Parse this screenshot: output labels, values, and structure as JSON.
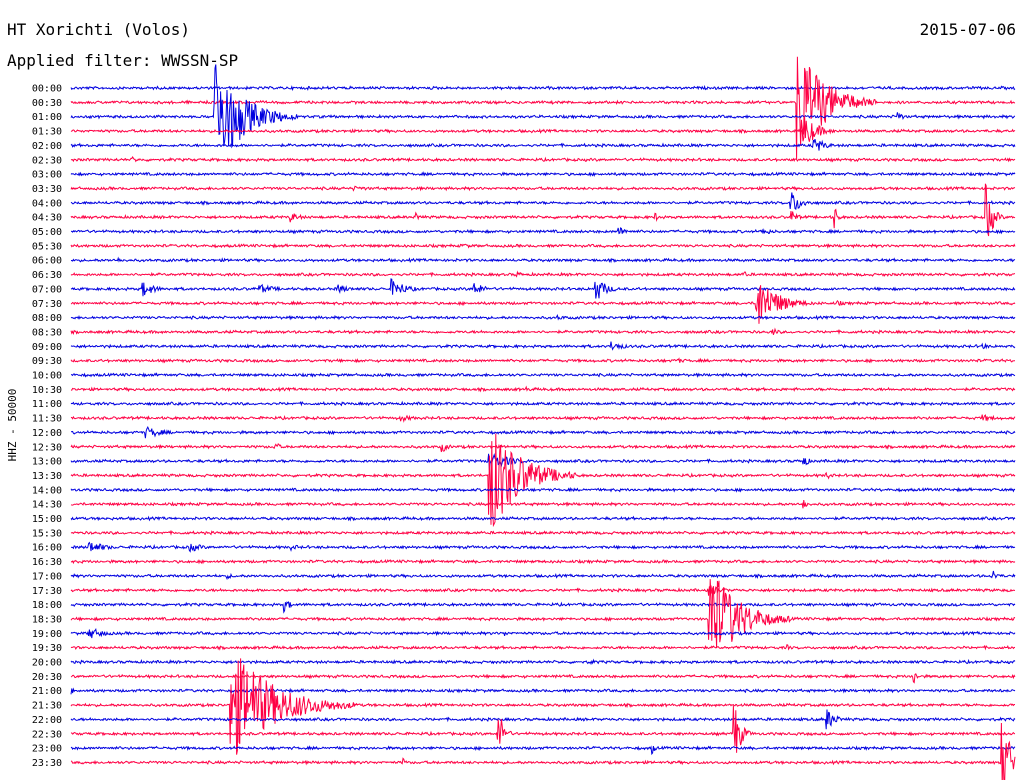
{
  "header": {
    "station": "HT Xorichti (Volos)",
    "date": "2015-07-06",
    "filter": "Applied filter: WWSSN-SP"
  },
  "colors": {
    "trace_a": "#0000e0",
    "trace_b": "#ff0044",
    "text": "#000000",
    "background": "#ffffff"
  },
  "chart_data": {
    "type": "line",
    "title": "HT Xorichti (Volos)",
    "subtitle": "Applied filter: WWSSN-SP",
    "ylabel": "HHZ - 50000",
    "xlabel": "",
    "x_range_minutes": [
      0,
      30
    ],
    "grid": false,
    "legend": "none",
    "traces": [
      {
        "label": "00:00",
        "color": "blue",
        "events": []
      },
      {
        "label": "00:30",
        "color": "red",
        "events": [
          {
            "t": 23.1,
            "amp": 1.0,
            "dur": 2.5
          }
        ]
      },
      {
        "label": "01:00",
        "color": "blue",
        "events": [
          {
            "t": 4.6,
            "amp": 0.95,
            "dur": 2.6
          },
          {
            "t": 26.3,
            "amp": 0.08,
            "dur": 0.5
          }
        ]
      },
      {
        "label": "01:30",
        "color": "red",
        "events": [
          {
            "t": 23.3,
            "amp": 0.3,
            "dur": 1.2
          }
        ]
      },
      {
        "label": "02:00",
        "color": "blue",
        "events": [
          {
            "t": 23.6,
            "amp": 0.15,
            "dur": 1.0
          }
        ]
      },
      {
        "label": "02:30",
        "color": "red",
        "events": [
          {
            "t": 2.0,
            "amp": 0.05,
            "dur": 0.4
          }
        ]
      },
      {
        "label": "03:00",
        "color": "blue",
        "events": []
      },
      {
        "label": "03:30",
        "color": "red",
        "events": [
          {
            "t": 9.0,
            "amp": 0.04,
            "dur": 2.0
          }
        ]
      },
      {
        "label": "04:00",
        "color": "blue",
        "events": [
          {
            "t": 22.9,
            "amp": 0.2,
            "dur": 1.0
          }
        ]
      },
      {
        "label": "04:30",
        "color": "red",
        "events": [
          {
            "t": 7.0,
            "amp": 0.08,
            "dur": 1.0
          },
          {
            "t": 11.0,
            "amp": 0.06,
            "dur": 0.6
          },
          {
            "t": 18.6,
            "amp": 0.06,
            "dur": 0.5
          },
          {
            "t": 22.9,
            "amp": 0.12,
            "dur": 0.6
          },
          {
            "t": 24.3,
            "amp": 0.15,
            "dur": 0.3
          },
          {
            "t": 29.1,
            "amp": 0.5,
            "dur": 0.6
          }
        ]
      },
      {
        "label": "05:00",
        "color": "blue",
        "events": [
          {
            "t": 17.4,
            "amp": 0.08,
            "dur": 1.0
          },
          {
            "t": 22.0,
            "amp": 0.06,
            "dur": 1.0
          }
        ]
      },
      {
        "label": "05:30",
        "color": "red",
        "events": [
          {
            "t": 12.5,
            "amp": 0.04,
            "dur": 1.0
          }
        ]
      },
      {
        "label": "06:00",
        "color": "blue",
        "events": [
          {
            "t": 1.5,
            "amp": 0.04,
            "dur": 1.0
          }
        ]
      },
      {
        "label": "06:30",
        "color": "red",
        "events": [
          {
            "t": 14.2,
            "amp": 0.05,
            "dur": 0.6
          },
          {
            "t": 21.4,
            "amp": 0.05,
            "dur": 0.5
          }
        ]
      },
      {
        "label": "07:00",
        "color": "blue",
        "events": [
          {
            "t": 2.3,
            "amp": 0.12,
            "dur": 1.2
          },
          {
            "t": 6.0,
            "amp": 0.08,
            "dur": 1.5
          },
          {
            "t": 8.5,
            "amp": 0.08,
            "dur": 1.0
          },
          {
            "t": 10.2,
            "amp": 0.16,
            "dur": 1.4
          },
          {
            "t": 12.8,
            "amp": 0.12,
            "dur": 1.0
          },
          {
            "t": 16.7,
            "amp": 0.2,
            "dur": 1.0
          }
        ]
      },
      {
        "label": "07:30",
        "color": "red",
        "events": [
          {
            "t": 21.8,
            "amp": 0.5,
            "dur": 1.8
          },
          {
            "t": 24.4,
            "amp": 0.05,
            "dur": 0.5
          }
        ]
      },
      {
        "label": "08:00",
        "color": "blue",
        "events": [
          {
            "t": 15.5,
            "amp": 0.04,
            "dur": 1.0
          }
        ]
      },
      {
        "label": "08:30",
        "color": "red",
        "events": [
          {
            "t": 22.3,
            "amp": 0.08,
            "dur": 0.5
          }
        ]
      },
      {
        "label": "09:00",
        "color": "blue",
        "events": [
          {
            "t": 17.2,
            "amp": 0.08,
            "dur": 1.2
          },
          {
            "t": 29.0,
            "amp": 0.05,
            "dur": 0.6
          }
        ]
      },
      {
        "label": "09:30",
        "color": "red",
        "events": [
          {
            "t": 19.3,
            "amp": 0.04,
            "dur": 1.2
          }
        ]
      },
      {
        "label": "10:00",
        "color": "blue",
        "events": []
      },
      {
        "label": "10:30",
        "color": "red",
        "events": [
          {
            "t": 14.5,
            "amp": 0.04,
            "dur": 0.5
          }
        ]
      },
      {
        "label": "11:00",
        "color": "blue",
        "events": []
      },
      {
        "label": "11:30",
        "color": "red",
        "events": [
          {
            "t": 10.5,
            "amp": 0.06,
            "dur": 1.2
          },
          {
            "t": 29.0,
            "amp": 0.06,
            "dur": 1.2
          }
        ]
      },
      {
        "label": "12:00",
        "color": "blue",
        "events": [
          {
            "t": 2.4,
            "amp": 0.1,
            "dur": 1.6
          }
        ]
      },
      {
        "label": "12:30",
        "color": "red",
        "events": [
          {
            "t": 6.5,
            "amp": 0.1,
            "dur": 0.4
          },
          {
            "t": 11.8,
            "amp": 0.1,
            "dur": 0.6
          }
        ]
      },
      {
        "label": "13:00",
        "color": "blue",
        "events": [
          {
            "t": 13.3,
            "amp": 0.15,
            "dur": 2.0
          },
          {
            "t": 23.3,
            "amp": 0.1,
            "dur": 0.5
          }
        ]
      },
      {
        "label": "13:30",
        "color": "red",
        "events": [
          {
            "t": 13.3,
            "amp": 1.0,
            "dur": 2.8
          },
          {
            "t": 24.0,
            "amp": 0.06,
            "dur": 0.8
          }
        ]
      },
      {
        "label": "14:00",
        "color": "blue",
        "events": []
      },
      {
        "label": "14:30",
        "color": "red",
        "events": [
          {
            "t": 23.3,
            "amp": 0.12,
            "dur": 0.3
          }
        ]
      },
      {
        "label": "15:00",
        "color": "blue",
        "events": []
      },
      {
        "label": "15:30",
        "color": "red",
        "events": []
      },
      {
        "label": "16:00",
        "color": "blue",
        "events": [
          {
            "t": 0.6,
            "amp": 0.1,
            "dur": 1.6
          },
          {
            "t": 3.8,
            "amp": 0.08,
            "dur": 1.2
          },
          {
            "t": 7.0,
            "amp": 0.05,
            "dur": 1.0
          }
        ]
      },
      {
        "label": "16:30",
        "color": "red",
        "events": []
      },
      {
        "label": "17:00",
        "color": "blue",
        "events": [
          {
            "t": 5.0,
            "amp": 0.04,
            "dur": 0.8
          },
          {
            "t": 29.3,
            "amp": 0.1,
            "dur": 0.5
          }
        ]
      },
      {
        "label": "17:30",
        "color": "red",
        "events": [
          {
            "t": 20.3,
            "amp": 0.1,
            "dur": 1.2
          }
        ]
      },
      {
        "label": "18:00",
        "color": "blue",
        "events": [
          {
            "t": 6.8,
            "amp": 0.1,
            "dur": 0.6
          }
        ]
      },
      {
        "label": "18:30",
        "color": "red",
        "events": [
          {
            "t": 20.3,
            "amp": 0.95,
            "dur": 2.6
          }
        ]
      },
      {
        "label": "19:00",
        "color": "blue",
        "events": [
          {
            "t": 0.6,
            "amp": 0.1,
            "dur": 1.4
          },
          {
            "t": 13.8,
            "amp": 0.04,
            "dur": 0.5
          }
        ]
      },
      {
        "label": "19:30",
        "color": "red",
        "events": [
          {
            "t": 22.8,
            "amp": 0.04,
            "dur": 0.5
          }
        ]
      },
      {
        "label": "20:00",
        "color": "blue",
        "events": [
          {
            "t": 16.5,
            "amp": 0.06,
            "dur": 0.5
          }
        ]
      },
      {
        "label": "20:30",
        "color": "red",
        "events": [
          {
            "t": 26.8,
            "amp": 0.12,
            "dur": 0.3
          }
        ]
      },
      {
        "label": "21:00",
        "color": "blue",
        "events": [
          {
            "t": 0.0,
            "amp": 0.06,
            "dur": 0.4
          }
        ]
      },
      {
        "label": "21:30",
        "color": "red",
        "events": [
          {
            "t": 5.1,
            "amp": 0.95,
            "dur": 4.0
          }
        ]
      },
      {
        "label": "22:00",
        "color": "blue",
        "events": [
          {
            "t": 24.0,
            "amp": 0.2,
            "dur": 0.8
          }
        ]
      },
      {
        "label": "22:30",
        "color": "red",
        "events": [
          {
            "t": 13.6,
            "amp": 0.4,
            "dur": 0.5
          },
          {
            "t": 21.1,
            "amp": 0.5,
            "dur": 0.6
          }
        ]
      },
      {
        "label": "23:00",
        "color": "blue",
        "events": [
          {
            "t": 18.5,
            "amp": 0.08,
            "dur": 0.3
          }
        ]
      },
      {
        "label": "23:30",
        "color": "red",
        "events": [
          {
            "t": 10.6,
            "amp": 0.06,
            "dur": 0.3
          },
          {
            "t": 29.6,
            "amp": 0.6,
            "dur": 1.2
          }
        ]
      }
    ]
  }
}
